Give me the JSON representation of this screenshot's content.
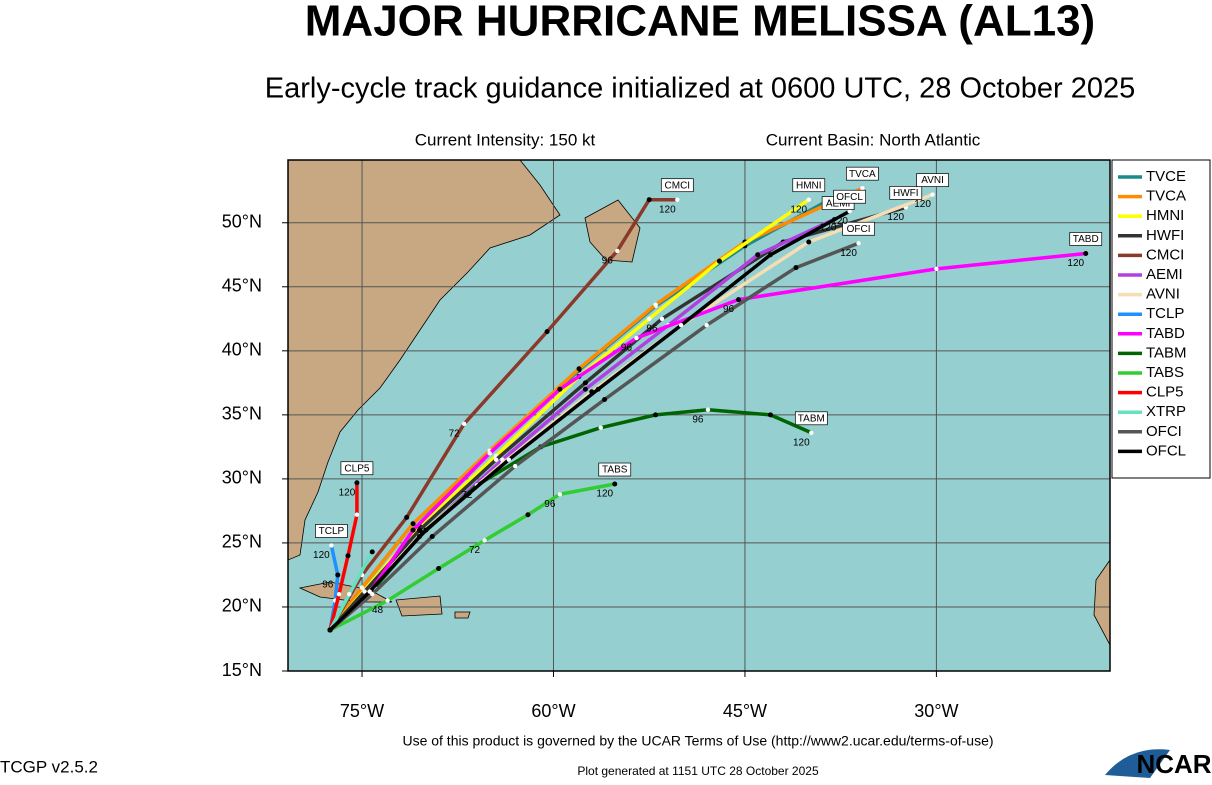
{
  "header": {
    "title": "MAJOR HURRICANE MELISSA (AL13)",
    "subtitle": "Early-cycle track guidance initialized at 0600 UTC, 28 October 2025",
    "intensity": "Current Intensity: 150 kt",
    "basin": "Current Basin: North Atlantic"
  },
  "map": {
    "xlim": [
      -80.8,
      -16.4
    ],
    "ylim": [
      15,
      54.9
    ],
    "xticks": [
      {
        "value": -75,
        "label": "75°W"
      },
      {
        "value": -60,
        "label": "60°W"
      },
      {
        "value": -45,
        "label": "45°W"
      },
      {
        "value": -30,
        "label": "30°W"
      }
    ],
    "yticks": [
      {
        "value": 15,
        "label": "15°N"
      },
      {
        "value": 20,
        "label": "20°N"
      },
      {
        "value": 25,
        "label": "25°N"
      },
      {
        "value": 30,
        "label": "30°N"
      },
      {
        "value": 35,
        "label": "35°N"
      },
      {
        "value": 40,
        "label": "40°N"
      },
      {
        "value": 45,
        "label": "45°N"
      },
      {
        "value": 50,
        "label": "50°N"
      }
    ],
    "grid": true,
    "tracks": [
      {
        "name": "TVCE",
        "color": "#1b8a8a",
        "points": [
          {
            "lon": -77.5,
            "lat": 18.2
          },
          {
            "lon": -75,
            "lat": 21.5
          },
          {
            "lon": -71,
            "lat": 26.5
          },
          {
            "lon": -65,
            "lat": 32
          },
          {
            "lon": -58,
            "lat": 38.5
          },
          {
            "lon": -52,
            "lat": 43.5
          },
          {
            "lon": -45,
            "lat": 48.2
          },
          {
            "lon": -38,
            "lat": 52
          }
        ]
      },
      {
        "name": "TVCA",
        "color": "#ff8c00",
        "points": [
          {
            "lon": -77.5,
            "lat": 18.2
          },
          {
            "lon": -75,
            "lat": 21.5
          },
          {
            "lon": -71,
            "lat": 26.5
          },
          {
            "lon": -65,
            "lat": 32.2
          },
          {
            "lon": -58,
            "lat": 38.6
          },
          {
            "lon": -52,
            "lat": 43.6
          },
          {
            "lon": -45,
            "lat": 48.5
          },
          {
            "lon": -35.8,
            "lat": 52.7,
            "hour": 120
          }
        ],
        "box": true
      },
      {
        "name": "HMNI",
        "color": "#ffff00",
        "points": [
          {
            "lon": -77.5,
            "lat": 18.2
          },
          {
            "lon": -74.8,
            "lat": 21.3
          },
          {
            "lon": -70.5,
            "lat": 26.3
          },
          {
            "lon": -64.5,
            "lat": 31.8
          },
          {
            "lon": -58,
            "lat": 38
          },
          {
            "lon": -52.5,
            "lat": 42.5
          },
          {
            "lon": -47,
            "lat": 47
          },
          {
            "lon": -40,
            "lat": 51.8,
            "hour": 120
          }
        ],
        "box": true
      },
      {
        "name": "HWFI",
        "color": "#333333",
        "points": [
          {
            "lon": -77.5,
            "lat": 18.2
          },
          {
            "lon": -74.8,
            "lat": 21.2
          },
          {
            "lon": -70.5,
            "lat": 26
          },
          {
            "lon": -64.5,
            "lat": 31.5
          },
          {
            "lon": -57.5,
            "lat": 37.5
          },
          {
            "lon": -51.5,
            "lat": 42.5,
            "hour": 96
          },
          {
            "lon": -42,
            "lat": 48.5
          },
          {
            "lon": -32.4,
            "lat": 51.2,
            "hour": 120
          }
        ],
        "box": true
      },
      {
        "name": "CMCI",
        "color": "#8b3a2a",
        "points": [
          {
            "lon": -77.5,
            "lat": 18.2
          },
          {
            "lon": -75,
            "lat": 22.5
          },
          {
            "lon": -71.5,
            "lat": 27
          },
          {
            "lon": -67,
            "lat": 34.3,
            "hour": 72
          },
          {
            "lon": -60.5,
            "lat": 41.5
          },
          {
            "lon": -55,
            "lat": 47.8,
            "hour": 96
          },
          {
            "lon": -52.5,
            "lat": 51.8
          },
          {
            "lon": -50.3,
            "lat": 51.8,
            "hour": 120
          }
        ],
        "box": true
      },
      {
        "name": "AEMI",
        "color": "#b040e0",
        "points": [
          {
            "lon": -77.5,
            "lat": 18.2
          },
          {
            "lon": -74.5,
            "lat": 21
          },
          {
            "lon": -70,
            "lat": 26
          },
          {
            "lon": -64,
            "lat": 31.5
          },
          {
            "lon": -57.5,
            "lat": 37
          },
          {
            "lon": -51,
            "lat": 42
          },
          {
            "lon": -44,
            "lat": 47.5
          },
          {
            "lon": -37.7,
            "lat": 50.4,
            "hour": 120
          }
        ],
        "box": true
      },
      {
        "name": "AVNI",
        "color": "#f5deb3",
        "points": [
          {
            "lon": -77.5,
            "lat": 18.2
          },
          {
            "lon": -74.6,
            "lat": 21
          },
          {
            "lon": -70.3,
            "lat": 25.8
          },
          {
            "lon": -64,
            "lat": 31.2
          },
          {
            "lon": -57,
            "lat": 36.8
          },
          {
            "lon": -50,
            "lat": 42
          },
          {
            "lon": -40,
            "lat": 48.5
          },
          {
            "lon": -30.3,
            "lat": 52.2,
            "hour": 120
          }
        ],
        "box": true
      },
      {
        "name": "TCLP",
        "color": "#1e90ff",
        "points": [
          {
            "lon": -77.5,
            "lat": 18.2
          },
          {
            "lon": -77.1,
            "lat": 20.5
          },
          {
            "lon": -76.9,
            "lat": 22.5,
            "hour": 96
          },
          {
            "lon": -77.4,
            "lat": 24.8,
            "hour": 120
          }
        ],
        "box": true
      },
      {
        "name": "TABD",
        "color": "#ff00ff",
        "points": [
          {
            "lon": -77.5,
            "lat": 18.2
          },
          {
            "lon": -74.5,
            "lat": 21
          },
          {
            "lon": -71,
            "lat": 26
          },
          {
            "lon": -65,
            "lat": 32
          },
          {
            "lon": -59.5,
            "lat": 37
          },
          {
            "lon": -53.5,
            "lat": 41,
            "hour": 96
          },
          {
            "lon": -45.5,
            "lat": 44,
            "hour": 96
          },
          {
            "lon": -30,
            "lat": 46.4
          },
          {
            "lon": -18.3,
            "lat": 47.6,
            "hour": 120
          }
        ],
        "box": true
      },
      {
        "name": "TABM",
        "color": "#006400",
        "points": [
          {
            "lon": -77.5,
            "lat": 18.2
          },
          {
            "lon": -74,
            "lat": 21.5
          },
          {
            "lon": -70.5,
            "lat": 25.5
          },
          {
            "lon": -66,
            "lat": 29.5,
            "hour": 72
          },
          {
            "lon": -61,
            "lat": 32.5
          },
          {
            "lon": -56.3,
            "lat": 34
          },
          {
            "lon": -52,
            "lat": 35
          },
          {
            "lon": -47.9,
            "lat": 35.4,
            "hour": 96
          },
          {
            "lon": -43,
            "lat": 35
          },
          {
            "lon": -39.8,
            "lat": 33.6,
            "hour": 120
          }
        ],
        "box": true
      },
      {
        "name": "TABS",
        "color": "#32cd32",
        "points": [
          {
            "lon": -77.5,
            "lat": 18.2
          },
          {
            "lon": -73,
            "lat": 20.5,
            "hour": 48
          },
          {
            "lon": -69,
            "lat": 23
          },
          {
            "lon": -65.4,
            "lat": 25.2,
            "hour": 72
          },
          {
            "lon": -62,
            "lat": 27.2
          },
          {
            "lon": -59.5,
            "lat": 28.8,
            "hour": 96
          },
          {
            "lon": -55.2,
            "lat": 29.6,
            "hour": 120
          }
        ],
        "box": true
      },
      {
        "name": "CLP5",
        "color": "#ff0000",
        "points": [
          {
            "lon": -77.5,
            "lat": 18.2
          },
          {
            "lon": -76.8,
            "lat": 21
          },
          {
            "lon": -76.1,
            "lat": 24
          },
          {
            "lon": -75.4,
            "lat": 27.2
          },
          {
            "lon": -75.4,
            "lat": 29.7,
            "hour": 120
          }
        ],
        "box": true
      },
      {
        "name": "XTRP",
        "color": "#66e0c0",
        "points": [
          {
            "lon": -77.5,
            "lat": 18.2
          },
          {
            "lon": -76,
            "lat": 21
          },
          {
            "lon": -74.2,
            "lat": 24.3
          }
        ]
      },
      {
        "name": "OFCI",
        "color": "#555555",
        "points": [
          {
            "lon": -77.5,
            "lat": 18.2
          },
          {
            "lon": -74.2,
            "lat": 21
          },
          {
            "lon": -69.5,
            "lat": 25.5
          },
          {
            "lon": -63,
            "lat": 31
          },
          {
            "lon": -56,
            "lat": 36.2
          },
          {
            "lon": -48,
            "lat": 42
          },
          {
            "lon": -41,
            "lat": 46.5
          },
          {
            "lon": -36.1,
            "lat": 48.4,
            "hour": 120
          }
        ],
        "box": true
      },
      {
        "name": "OFCL",
        "color": "#000000",
        "points": [
          {
            "lon": -77.5,
            "lat": 18.2
          },
          {
            "lon": -74.4,
            "lat": 21.2
          },
          {
            "lon": -70,
            "lat": 26
          },
          {
            "lon": -63.5,
            "lat": 31.5
          },
          {
            "lon": -56.5,
            "lat": 37
          },
          {
            "lon": -50,
            "lat": 42
          },
          {
            "lon": -43,
            "lat": 47.5
          },
          {
            "lon": -36.8,
            "lat": 50.9,
            "hour": 120
          }
        ],
        "box": true
      }
    ]
  },
  "footer": {
    "terms": "Use of this product is governed by the UCAR Terms of Use (http://www2.ucar.edu/terms-of-use)",
    "version": "TCGP v2.5.2",
    "generated": "Plot generated at 1151 UTC   28 October 2025",
    "logo": "NCAR"
  }
}
